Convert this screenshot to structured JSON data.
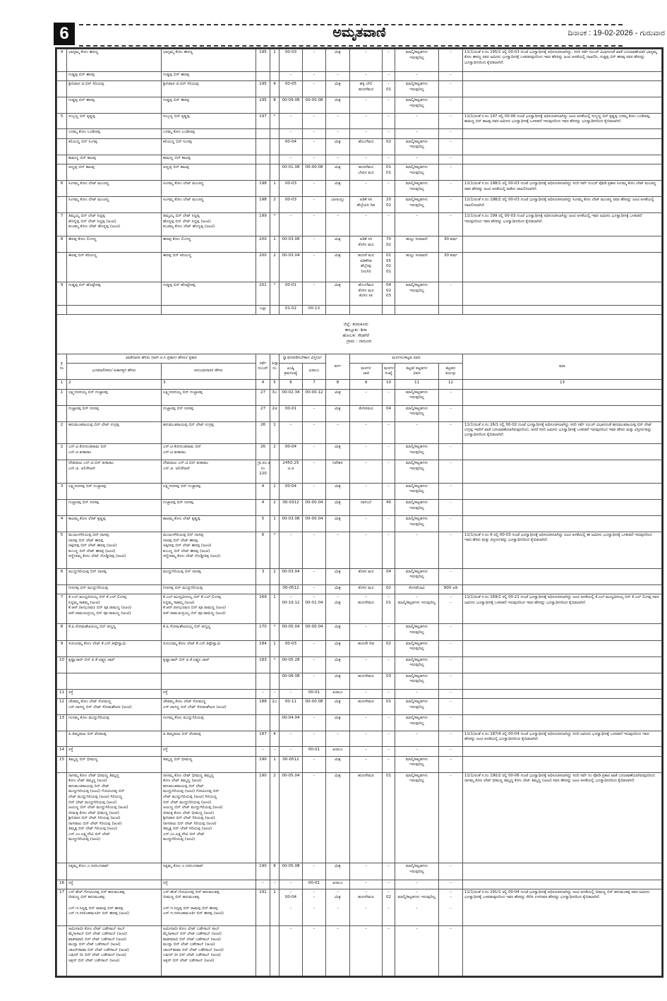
{
  "masthead": {
    "page_number": "6",
    "paper_name": "ಅಮೃತವಾಣಿ",
    "date_line": "ದಿನಾಂಕ : 19-02-2026 - ಗುರುವಾರ"
  },
  "section1": {
    "rows": [
      [
        "4",
        "ಭಾಗ್ಯಮ್ಮ ಕೋಂ ಈರಣ್ಣ",
        "ಭಾಗ್ಯಮ್ಮ ಕೋಂ ಈರಣ್ಣ",
        "195",
        "1",
        "00-03",
        "–",
        "ಮಿಶ್ರ",
        "–",
        "–",
        "ಮಾಲ್ಕಿ/ಕಟ್ಟಡಗಳು\nಇರುವುದಿಲ್ಲ",
        "–",
        "11(1)ರಂತೆ ಸ.ನಂ 195/1 ರಲ್ಲಿ 00-03 ಗುಂಟೆ ಭೂಸ್ವಾಧೀನಕ್ಕೆ ಅಧಿಸೂಚಿಸಲಾಗಿದ್ದು, ಸದರಿ ಸರ್ವೆ ನಂಬರ್ ವಿಭಾಗದಂತೆ ಖಾತೆ ಬದಲಾವಣೆಯಾಗಿ ಭಾಗ್ಯಮ್ಮ ಕೋಂ ಈರಣ್ಣ ರವರ ಜಮೀನು ಭೂಸ್ವಾಧೀನಕ್ಕೆ ಒಳಪಡುವುದರಿಂದ ಇವರ ಹೆಸರನ್ನು ಜಂಟಿ ಅಳತೆಯಲ್ಲಿ ದಾಖಲಿಸಿ, ಗುಡ್ಡಪ್ಪ ಬಿನ್ ಈರಪ್ಪ ರವರ ಹೆಸರನ್ನು ಭೂಸ್ವಾಧೀನದಿಂದ ಕೈಬಿಡಲಾಗಿದೆ."
      ],
      [
        "",
        "ಗುಡ್ಡಪ್ಪ ಬಿನ್ ಈರಪ್ಪ",
        "ಗುಡ್ಡಪ್ಪ ಬಿನ್ ಈರಪ್ಪ",
        "",
        "",
        "–",
        "–",
        "–",
        "–",
        "–",
        "–",
        "–",
        ""
      ],
      [
        "",
        "ಶ್ರೀನಿವಾಸ ಜಿ.ಬಿನ್ ಗಿರಿಯಪ್ಪ",
        "ಶ್ರೀನಿವಾಸ ಜಿ.ಬಿನ್ ಗಿರಿಯಪ್ಪ",
        "195",
        "4",
        "00-05",
        "–",
        "ಮಿಶ್ರ",
        "ಹಕ್ಕಿ ಬೇಲಿ\nಹುಣಸೆಮರ",
        "–\n01",
        "ಮಾಲ್ಕಿ/ಕಟ್ಟಡಗಳು\nಇರುವುದಿಲ್ಲ",
        "–",
        ""
      ],
      [
        "",
        "ಗುಡ್ಡಪ್ಪ ಬಿನ್ ಈರಪ್ಪ",
        "ಗುಡ್ಡಪ್ಪ ಬಿನ್ ಈರಪ್ಪ",
        "195",
        "8",
        "00-09.08",
        "00-00.08",
        "ಮಿಶ್ರ",
        "–",
        "–",
        "ಮಾಲ್ಕಿ/ಕಟ್ಟಡಗಳು\nಇರುವುದಿಲ್ಲ",
        "–",
        ""
      ],
      [
        "5",
        "ಸುಬ್ಬಣ್ಣ ಬಿನ್ ಕೃಷ್ಣಪ್ಪ",
        "ಸುಬ್ಬಣ್ಣ ಬಿನ್ ಕೃಷ್ಣಪ್ಪ",
        "197",
        "*",
        "–",
        "–",
        "–",
        "–",
        "–",
        "–",
        "–",
        "11(1)ರಂತೆ ಸ.ನಂ 197 ರಲ್ಲಿ 00-06 ಗುಂಟೆ ಭೂಸ್ವಾಧೀನಕ್ಕೆ ಅಧಿಸೂಚಿಸಲಾಗಿದ್ದು ಜಂಟಿ ಅಳತೆಯಲ್ಲಿ ಸುಬ್ಬಣ್ಣ ಬಿನ್ ಕೃಷ್ಣಪ್ಪ ಬಸಮ್ಮ ಕೋಂ ಬಂಡೀರಪ್ಪ, ಕಾಮಣ್ಣ ಬಿನ್ ಕಾಟಪ್ಪ ರವರ ಜಮೀನು ಭೂಸ್ವಾಧೀನಕ್ಕೆ ಒಳಪಡದೆ ಇರುವುದರಿಂದ ಇವರ ಹೆಸರನ್ನು ಭೂಸ್ವಾಧೀನದಿಂದ ಕೈಬಿಡಲಾಗಿದೆ."
      ],
      [
        "",
        "ಬಸಮ್ಮ ಕೋಂ ಬಂಡೀರಪ್ಪ",
        "ಬಸಮ್ಮ ಕೋಂ ಬಂಡೀರಪ್ಪ",
        "",
        "",
        "–",
        "–",
        "–",
        "–",
        "–",
        "–",
        "–",
        ""
      ],
      [
        "",
        "ಕರಿಯಣ್ಣ ಬಿನ್ ಸಿಂಗಪ್ಪ",
        "ಕರಿಯಣ್ಣ ಬಿನ್ ಸಿಂಗಪ್ಪ",
        "",
        "",
        "00-04",
        "–",
        "ಮಿಶ್ರ",
        "ಹೊಂಗೆಮರ",
        "02",
        "ಮಾಲ್ಕಿ/ಕಟ್ಟಡಗಳು\nಇರುವುದಿಲ್ಲ",
        "–",
        ""
      ],
      [
        "",
        "ಕಾಮಣ್ಣ ಬಿನ್ ಕಾಟಪ್ಪ",
        "ಕಾಮಣ್ಣ ಬಿನ್ ಕಾಟಪ್ಪ",
        "",
        "",
        "–",
        "–",
        "–",
        "–",
        "–",
        "–",
        "–",
        ""
      ],
      [
        "",
        "ಅಣ್ಣಪ್ಪ ಬಿನ್ ಕಾಟಪ್ಪ",
        "ಅಣ್ಣಪ್ಪ ಬಿನ್ ಕಾಟಪ್ಪ",
        "",
        "",
        "00-01.08",
        "00-00.08",
        "ಮಿಶ್ರ",
        "ಹುಣಸೆಮರ\nಬೇವಿನ ಮರ",
        "01\n01",
        "ಮಾಲ್ಕಿ/ಕಟ್ಟಡಗಳು\nಇರುವುದಿಲ್ಲ",
        "–",
        ""
      ],
      [
        "6",
        "ಸಿಂಗಮ್ಮ ಕೋಂ ಲೇಟ್ ಮಂಚಣ್ಣ",
        "ಸಿಂಗಮ್ಮ ಕೋಂ ಲೇಟ್ ಮಂಚಣ್ಣ",
        "198",
        "1",
        "00-03",
        "–",
        "ಮಿಶ್ರ",
        "–",
        "–",
        "ಮಾಲ್ಕಿ/ಕಟ್ಟಡಗಳು\nಇರುವುದಿಲ್ಲ",
        "–",
        "11(1)ರಂತೆ ಸ.ನಂ 198/1 ರಲ್ಲಿ 00-03 ಗುಂಟೆ ಭೂಸ್ವಾಧೀನಕ್ಕೆ ಅಧಿಸೂಚಿಸಲಾಗಿದ್ದು ಸದರಿ ಸರ್ವೆ ನಂಬರ್ ಪೋಡಿ ಪ್ರಕಾರ ಸಿಂಗಮ್ಮ ಕೋಂ ಲೇಟ್ ಮಂಚಣ್ಣ ರವರ ಹೆಸರನ್ನು ಜಂಟಿ ಅಳತೆಯಲ್ಲಿ ಪಡೆದು ದಾಖಲಿಸಲಾಗಿದೆ."
      ],
      [
        "",
        "ಸಿಂಗಮ್ಮ ಕೋಂ ಲೇಟ್ ಮಂಚಣ್ಣ",
        "ಸಿಂಗಮ್ಮ ಕೋಂ ಲೇಟ್ ಮಂಚಣ್ಣ",
        "198",
        "2",
        "00-03",
        "–",
        "ಬಾಗಾಯ್ತು",
        "ಅಡಿಕೆ ಸಸಿ\nಹೆಬ್ಬೇವಿನ ಗಿಡ",
        "20\n02",
        "ಮಾಲ್ಕಿ/ಕಟ್ಟಡಗಳು\nಇರುವುದಿಲ್ಲ",
        "–",
        "11(1)ರಂತೆ ಸ.ನಂ 198/2 ರಲ್ಲಿ 00-03 ಗುಂಟೆ ಭೂಸ್ವಾಧೀನಕ್ಕೆ ಅಧಿಸೂಚಿಸಲಾಗಿದ್ದು ಸಿಂಗಮ್ಮ ಕೋಂ ಲೇಟ್ ಮಂಚಣ್ಣ ರವರ ಹೆಸರನ್ನು ಜಂಟಿ ಅಳತೆಯಲ್ಲಿ ದಾಖಲಿಸಲಾಗಿದೆ."
      ],
      [
        "7",
        "ತಿಮ್ಮಯ್ಯ ಬಿನ್ ಲೇಟ್ ಸಿದ್ದಪ್ಪ\nಹೊನ್ನಪ್ಪ ಬಿನ್ ಲೇಟ್ ಸಿದ್ದಪ್ಪ (ಜಂಟಿ)\nಕಂಚಮ್ಮ ಕೋಂ ಲೇಟ್ ಹೊನ್ನಪ್ಪ (ಜಂಟಿ)",
        "ತಿಮ್ಮಯ್ಯ ಬಿನ್ ಲೇಟ್ ಸಿದ್ದಪ್ಪ\nಹೊನ್ನಪ್ಪ ಬಿನ್ ಲೇಟ್ ಸಿದ್ದಪ್ಪ (ಜಂಟಿ)\nಕಂಚಮ್ಮ ಕೋಂ ಲೇಟ್ ಹೊನ್ನಪ್ಪ (ಜಂಟಿ)",
        "199",
        "*",
        "–",
        "–",
        "–",
        "–",
        "–",
        "–",
        "–",
        "11(1)ರಂತೆ ಸ.ನಂ 199 ರಲ್ಲಿ 00-03 ಗುಂಟೆ ಭೂಸ್ವಾಧೀನಕ್ಕೆ ಅಧಿಸೂಚಿಸಲಾಗಿದ್ದು ಜಂಟಿ ಅಳತೆಯಲ್ಲಿ ಇವರ ಜಮೀನು ಭೂಸ್ವಾಧೀನಕ್ಕೆ ಒಳಪಡದೆ ಇರುವುದರಿಂದ ಇವರ ಹೆಸರನ್ನು ಭೂಸ್ವಾಧೀನದಿಂದ ಕೈಬಿಡಲಾಗಿದೆ."
      ],
      [
        "8",
        "ಈರಪ್ಪ ಕೋಂ ಲಿಂಗಣ್ಣ",
        "ಈರಪ್ಪ ಕೋಂ ಲಿಂಗಣ್ಣ",
        "200",
        "1",
        "00-03.08",
        "–",
        "ಮಿಶ್ರ",
        "ಅಡಿಕೆ ಸಸಿ\nತೆಂಗಿನ ಮರ",
        "70\n02",
        "ಹುಲ್ಲು ಸೀರಾವಣಿ",
        "30 ವರ್ಷ",
        ""
      ],
      [
        "",
        "ಈರಪ್ಪ ಬಿನ್ ಕರಿಯಣ್ಣ",
        "ಈರಪ್ಪ ಬಿನ್ ಕರಿಯಣ್ಣ",
        "200",
        "2",
        "00-03.04",
        "–",
        "ಮಿಶ್ರ",
        "ಹುಣಸೆ ಮರ\nಅಡಿಕೆಗಿಡ\nಹೆಬ್ಬೇವು\nನೀಲಗಿರಿ",
        "01\n55\n02\n01",
        "ಹುಲ್ಲು ಸೀರಾವಣಿ",
        "30 ವರ್ಷ",
        ""
      ],
      [
        "9",
        "ಗುಡ್ಡಪ್ಪ ಬಿನ್ ಹೊಟ್ಟೇರಪ್ಪ",
        "ಗುಡ್ಡಪ್ಪ ಬಿನ್ ಹೊಟ್ಟೇರಪ್ಪ",
        "201",
        "*",
        "00-01",
        "–",
        "ಮಿಶ್ರ",
        "ಹೊಂಗೆಮರ\nತೆಂಗಿನ ಮರ\nತೆಂಗಿನ ಸಸಿ",
        "04\n02\n03",
        "ಮಾಲ್ಕಿ/ಕಟ್ಟಡಗಳು\nಇರುವುದಿಲ್ಲ",
        "–",
        ""
      ]
    ],
    "total": {
      "label": "ಒಟ್ಟು",
      "area": "01-02",
      "kharab": "00-13"
    }
  },
  "location": {
    "district": "ಜಿಲ್ಲೆ: ತುಮಕೂರು",
    "taluk": "ತಾಲ್ಲೂಕು: ಶಿರಾ",
    "hobli": "ಹೋಬಳಿ: ಗೌಡಗೆರೆ",
    "village": "ಗ್ರಾಮ : ನಾದೂರು"
  },
  "headers": {
    "sl_no": "ಕ್ರ\nಸಂ",
    "owner_group": "ಖಾತೆದಾರರ ಹೆಸರು (ಆರ್.ಟಿ.ಸಿ ಪ್ರಕಾರ) ಹೆಸರು/ ಪ್ರಕಾರ",
    "owner": "ಭೂಮಾಲೀಕರು/ ಹಿತಾಸಕ್ತರ ಹೆಸರು",
    "occupant": "ಅನುಭವದಾರರ ಹೆಸರು",
    "survey_no": "ಸರ್ವೆ\nನಂಬರ್",
    "hissa": "ಹಿಸ್ಸಾ\nನಂ",
    "area_group": "ಸ್ವಾಧೀನಪಡಿಸಬೇಕಾದ ವಿಸ್ತೀರ್ಣ",
    "area_khushki": "ಖುಷ್ಕಿ\nಕ್ರಮಸಂಖ್ಯೆ",
    "area_kharab": "ಖರಾಬು",
    "category": "ವರ್ಗ",
    "trees_group": "ಮರಗಳು/ಕಟ್ಟಡ ವಿವರ",
    "tree_type": "ಮರಗಳ\nಜಾತಿ",
    "tree_count": "ಮರಗಳ\nಸಂಖ್ಯೆ",
    "building": "ಕಟ್ಟಡ/ ಕಟ್ಟಡಗಳ\nವಿವರ",
    "building_age": "ಕಟ್ಟಡದ\nವಯಸ್ಸು",
    "remarks": "ಷರಾ",
    "numbers": [
      "1",
      "2",
      "3",
      "4",
      "5",
      "6",
      "7",
      "8",
      "9",
      "10",
      "11",
      "12",
      "13"
    ]
  },
  "section2": {
    "rows": [
      [
        "1",
        "ಲಕ್ಷ್ಮೀನರಸಯ್ಯ ಬಿನ್ ಗುಜ್ಜಾರಪ್ಪ",
        "ಲಕ್ಷ್ಮೀನರಸಯ್ಯ ಬಿನ್ ಗುಜ್ಜಾರಪ್ಪ",
        "27",
        "3ಎ",
        "00-02.34",
        "00-00.12",
        "ಮಿಶ್ರ",
        "–",
        "–",
        "ಮಾಲ್ಕಿ/ಕಟ್ಟಡಗಳು\nಇರುವುದಿಲ್ಲ",
        "–",
        ""
      ],
      [
        "",
        "ಗುಜ್ಜಾರಪ್ಪ ಬಿನ್ ನರಸಪ್ಪ",
        "ಗುಜ್ಜಾರಪ್ಪ ಬಿನ್ ನರಸಪ್ಪ",
        "27",
        "2ಜಿ",
        "00-01",
        "–",
        "ಮಿಶ್ರ",
        "ತೆಂಗಿನಮರ",
        "04",
        "ಮಾಲ್ಕಿ/ಕಟ್ಟಡಗಳು\nಇರುವುದಿಲ್ಲ",
        "–",
        ""
      ],
      [
        "2",
        "ಹನುಮಂತರಾಯಪ್ಪ ಬಿನ್ ಲೇಟ್ ಉಗ್ರಪ್ಪ",
        "ಹನುಮಂತರಾಯಪ್ಪ ಬಿನ್ ಲೇಟ್ ಉಗ್ರಪ್ಪ",
        "26",
        "1",
        "–",
        "–",
        "–",
        "–",
        "–",
        "–",
        "–",
        "11(1)ರಂತೆ ಸ.ನಂ 26/1 ರಲ್ಲಿ 00-02 ಗುಂಟೆ ಭೂಸ್ವಾಧೀನಕ್ಕೆ ಅಧಿಸೂಚಿಸಲಾಗಿದ್ದು ಸದರಿ ಸರ್ವೆ ನಂಬರ್ ವಿಭಾಗದಂತೆ ಹನುಮಂತರಾಯಪ್ಪ ಬಿನ್ ಲೇಟ್ ಉಗ್ರಪ್ಪ ಇವರಿಗೆ ಖಾತೆ ಬದಲಾವಣೆಯಾಗಿರುವುದರಿಂದ, ಆದರೆ ಸದರಿ ಜಮೀನು ಭೂಸ್ವಾಧೀನಕ್ಕೆ ಒಳಪಡದೆ ಇರುವುದರಿಂದ ಇವರ ಹೆಸರು ಮತ್ತು ವಿಸ್ತೀರ್ಣವನ್ನು ಭೂಸ್ವಾಧೀನದಿಂದ ಕೈಬಿಡಲಾಗಿದೆ."
      ],
      [
        "2",
        "ಎನ್.ಟಿ.ಕೋದಂಡರಾಮ ಬಿನ್\nಎನ್.ಟಿ.ತುಕಾರಾಂ",
        "ಎನ್.ಟಿ.ಕೋದಂಡರಾಮ ಬಿನ್\nಎನ್.ಟಿ.ತುಕಾರಾಂ",
        "26",
        "2",
        "00-04",
        "–",
        "ಮಿಶ್ರ",
        "–",
        "–",
        "ಮಾಲ್ಕಿ/ಕಟ್ಟಡಗಳು\nಇರುವುದಿಲ್ಲ",
        "–",
        ""
      ],
      [
        "",
        "ದೇವರಾಜು ಎನ್.ಟಿ.ಬಿನ್ ತುಕಾರಾಂ\nಎನ್.ಜಿ. ಅಲಿಸೇಜರ್",
        "ದೇವರಾಜು ಎನ್.ಟಿ.ಬಿನ್ ತುಕಾರಾಂ\nಎನ್.ಜಿ. ಅಲಿಸೇಜರ್",
        "ಗ್ರಾ.ಪಂ.ಖಾತೆ\nನಂ 220",
        "",
        "2450.25\nಚ.ಅ",
        "–",
        "ನಿವೇಶನ",
        "–",
        "–",
        "ಮಾಲ್ಕಿ/ಕಟ್ಟಡಗಳು\nಇರುವುದಿಲ್ಲ",
        "–",
        ""
      ],
      [
        "3",
        "ಲಕ್ಷ್ಮೀನರಸಪ್ಪ ಬಿನ್ ಗುಜ್ಜಾರಪ್ಪ",
        "ಲಕ್ಷ್ಮೀನರಸಪ್ಪ ಬಿನ್ ಗುಜ್ಜಾರಪ್ಪ",
        "4",
        "1",
        "00-04",
        "–",
        "ಮಿಶ್ರ",
        "–",
        "–",
        "ಮಾಲ್ಕಿ/ಕಟ್ಟಡಗಳು\nಇರುವುದಿಲ್ಲ",
        "–",
        ""
      ],
      [
        "",
        "ಗುಜ್ಜಾರಪ್ಪ ಬಿನ್ ನರಸಪ್ಪ",
        "ಗುಜ್ಜಾರಪ್ಪ ಬಿನ್ ನರಸಪ್ಪ",
        "4",
        "2",
        "00-0312",
        "00-00.04",
        "ಮಿಶ್ರ",
        "ದಾಳಿಂಬೆ",
        "40",
        "ಮಾಲ್ಕಿ/ಕಟ್ಟಡಗಳು\nಇರುವುದಿಲ್ಲ",
        "–",
        ""
      ],
      [
        "4",
        "ಕಾಟಮ್ಮ ಕೋಂ ಲೇಟ್ ಕೃಷ್ಣಪ್ಪ",
        "ಕಾಟಮ್ಮ ಕೋಂ ಲೇಟ್ ಕೃಷ್ಣಪ್ಪ",
        "5",
        "1",
        "00-03.08",
        "00-00.04",
        "ಮಿಶ್ರ",
        "–",
        "–",
        "ಮಾಲ್ಕಿ/ಕಟ್ಟಡಗಳು\nಇರುವುದಿಲ್ಲ",
        "–",
        ""
      ],
      [
        "5",
        "ಮಂಜುಳಗಿರಿಯಪ್ಪ ಬಿನ್ ದಾಸಪ್ಪ\nದಾಸಪ್ಪ ಬಿನ್ ಲೇಟ್ ಈರಪ್ಪ\nಚಿಕ್ಕೀರಪ್ಪ ಬಿನ್ ಲೇಟ್ ಈರಪ್ಪ (ಜಂಟಿ)\nಕಂಬಣ್ಣ ಬಿನ್ ಲೇಟ್ ಈರಪ್ಪ (ಜಂಟಿ)\nಸಣ್ಣೀರಮ್ಮ ಕೋಂ ಲೇಟ್ ದೊಡ್ಡೀರಪ್ಪ (ಜಂಟಿ)",
        "ಮಂಜುಳಗಿರಿಯಪ್ಪ ಬಿನ್ ದಾಸಪ್ಪ\nದಾಸಪ್ಪ ಬಿನ್ ಲೇಟ್ ಈರಪ್ಪ\nಚಿಕ್ಕೀರಪ್ಪ ಬಿನ್ ಲೇಟ್ ಈರಪ್ಪ (ಜಂಟಿ)\nಕಂಬಣ್ಣ ಬಿನ್ ಲೇಟ್ ಈರಪ್ಪ (ಜಂಟಿ)\nಸಣ್ಣೀರಮ್ಮ ಕೋಂ ಲೇಟ್ ದೊಡ್ಡೀರಪ್ಪ (ಜಂಟಿ)",
        "6",
        "*",
        "–",
        "–",
        "–",
        "–",
        "–",
        "–",
        "–",
        "11(1)ರಂತೆ ಸ.ನಂ 6 ರಲ್ಲಿ 00-03 ಗುಂಟೆ ಭೂಸ್ವಾಧೀನಕ್ಕೆ ಅಧಿಸೂಚಿಸಲಾಗಿದ್ದು ಜಂಟಿ ಅಳತೆಯಲ್ಲಿ ಈ ಜಮೀನು ಭೂಸ್ವಾಧೀನಕ್ಕೆ ಒಳಪಡದೆ ಇರುವುದರಿಂದ ಇವರ ಹೆಸರು ಮತ್ತು ವಿಸ್ತೀರ್ಣವನ್ನು ಭೂಸ್ವಾಧೀನದಿಂದ ಕೈಬಿಡಲಾಗಿದೆ."
      ],
      [
        "6",
        "ಮುದ್ದುಗಿರಿಯಪ್ಪ ಬಿನ್ ದಾಸಪ್ಪ",
        "ಮುದ್ದುಗಿರಿಯಪ್ಪ ಬಿನ್ ದಾಸಪ್ಪ",
        "3",
        "2",
        "00-03.04",
        "–",
        "ಮಿಶ್ರ",
        "ತೆಂಗಿನ ಮರ",
        "04",
        "ಮಾಲ್ಕಿ/ಕಟ್ಟಡಗಳು\nಇರುವುದಿಲ್ಲ",
        "–",
        ""
      ],
      [
        "",
        "ನೀರಳಪ್ಪ ಬಿನ್ ಮುದ್ದುಗಿರಿಯಪ್ಪ",
        "ನೀರಳಪ್ಪ ಬಿನ್ ಮುದ್ದುಗಿರಿಯಪ್ಪ",
        "",
        "",
        "00-0512",
        "–",
        "ಮಿಶ್ರ",
        "ತೆಂಗಿನ ಮರ",
        "02",
        "ಕೊಳವೆಬಾವಿ",
        "900 ಅಡಿ",
        ""
      ],
      [
        "7",
        "ಕೆ.ಎಲ್.ಮುದ್ದವೀರಯ್ಯ ಬಿನ್ ಕೆ.ಎಲ್.ಲಿಂಗಪ್ಪ\nಸಿದ್ದಮ್ಮ ಸಾಕಮ್ಮ (ಜಂಟಿ)\nಕೆ.ಆರ್.ನಾಗಭೂಷಣ ಬಿನ್ ಪೂ.ರಾಮಣ್ಣ (ಜಂಟಿ)\nಆರ್.ರಾಮಚಂದ್ರಯ್ಯ ಬಿನ್ ಪೂ.ರಾಮಣ್ಣ (ಜಂಟಿ)",
        "ಕೆ.ಎಲ್.ಮುದ್ದವೀರಯ್ಯ ಬಿನ್ ಕೆ.ಎಲ್.ಲಿಂಗಪ್ಪ\nಸಿದ್ದಮ್ಮ ಸಾಕಮ್ಮ (ಜಂಟಿ)\nಕೆ.ಆರ್.ನಾಗಭೂಷಣ ಬಿನ್ ಪೂ.ರಾಮಣ್ಣ (ಜಂಟಿ)\nಆರ್.ರಾಮಚಂದ್ರಯ್ಯ ಬಿನ್ ಪೂ.ರಾಮಣ್ಣ (ಜಂಟಿ)",
        "169",
        "1",
        "–\n00-19.12",
        "–\n00-01.04",
        "–\nಮಿಶ್ರ",
        "–\nಹುಣಸೇಮರ",
        "–\n01",
        "–\nಮಾಲ್ಕಿ/ಕಟ್ಟಡಗಳು ಇರುವುದಿಲ್ಲ",
        "–\n–",
        "11(1)ರಂತೆ ಸ.ನಂ 169/1 ರಲ್ಲಿ 00-21 ಗುಂಟೆ ಭೂಸ್ವಾಧೀನಕ್ಕೆ ಅಧಿಸೂಚಿಸಲಾಗಿದ್ದು ಜಂಟಿ ಅಳತೆಯಲ್ಲಿ ಕೆ.ಎಲ್.ಮುದ್ದವೀರಯ್ಯ ಬಿನ್ ಕೆ.ಎಲ್ ಲಿಂಗಪ್ಪ ರವರ ಜಮೀನು ಭೂಸ್ವಾಧೀನಕ್ಕೆ ಒಳಪಡದೆ ಇರುವುದರಿಂದ ಇವರ ಹೆಸರನ್ನು ಭೂಸ್ವಾಧೀನದಿಂದ ಕೈಬಿಡಲಾಗಿದೆ."
      ],
      [
        "8",
        "ಕೆ.ಪಿ.ಸೋಮಶೇಖರಯ್ಯ ಬಿನ್ ಪದ್ಮಣ್ಣ",
        "ಕೆ.ಪಿ.ಸೋಮಶೇಖರಯ್ಯ ಬಿನ್ ಪದ್ಮಣ್ಣ",
        "170",
        "*",
        "00-05.04",
        "00-00.04",
        "ಮಿಶ್ರ",
        "–",
        "–",
        "ಮಾಲ್ಕಿ/ಕಟ್ಟಡಗಳು\nಇರುವುದಿಲ್ಲ",
        "–",
        ""
      ],
      [
        "9",
        "ಸುನಂದಮ್ಮ ಕೋಂ ಲೇಟ್ ಕೆ.ಎನ್.ತಿಪ್ಪೇಸ್ವಾಮಿ",
        "ಸುನಂದಮ್ಮ ಕೋಂ ಲೇಟ್ ಕೆ.ಎನ್.ತಿಪ್ಪೇಸ್ವಾಮಿ",
        "184",
        "1",
        "00-03",
        "–",
        "ಮಿಶ್ರ",
        "ಹುಣಸೇ ಗಿಡ",
        "02",
        "ಮಾಲ್ಕಿ/ಕಟ್ಟಡಗಳು\nಇರುವುದಿಲ್ಲ",
        "–",
        ""
      ],
      [
        "10",
        "ಕೃಷ್ಣಾಚಾರ್ ಬಿನ್ ಪಿ.ಕೆ.ಲಕ್ಷ್ಮಣ ಚಾರ್",
        "ಕೃಷ್ಣಾಚಾರ್ ಬಿನ್ ಪಿ.ಕೆ.ಲಕ್ಷ್ಮಣ ಚಾರ್",
        "183",
        "*",
        "00-05.28",
        "–",
        "ಮಿಶ್ರ",
        "–",
        "–",
        "ಮಾಲ್ಕಿ/ಕಟ್ಟಡಗಳು\nಇರುವುದಿಲ್ಲ",
        "–",
        ""
      ],
      [
        "",
        "",
        "",
        "",
        "",
        "00-08.08",
        "–",
        "ಮಿಶ್ರ",
        "ಹುಣಸೇಮರ",
        "03",
        "ಮಾಲ್ಕಿ/ಕಟ್ಟಡಗಳು\nಇರುವುದಿಲ್ಲ",
        "–",
        ""
      ],
      [
        "11",
        "ರಸ್ತೆ",
        "ರಸ್ತೆ",
        "–",
        "–",
        "–",
        "00-01",
        "ಖರಾಬು",
        "–",
        "–",
        "–",
        "–",
        ""
      ],
      [
        "12",
        "ಚೌಡಮ್ಮ ಕೋಂ ಲೇಟ್ ಸೋಮಣ್ಣ\nಎಸ್.ನಾಗಣ್ಣ ಬಿನ್ ಲೇಟ್ ಸೋಮಶೇಖರ (ಜಂಟಿ)",
        "ಚೌಡಮ್ಮ ಕೋಂ ಲೇಟ್ ಸೋಮಣ್ಣ\nಎಸ್.ನಾಗಣ್ಣ ಬಿನ್ ಲೇಟ್ ಸೋಮಶೇಖರ (ಜಂಟಿ)",
        "188",
        "2ಎ",
        "00-11",
        "00-00.08",
        "ಮಿಶ್ರ",
        "ಹುಣಸೇಮರ",
        "01",
        "ಮಾಲ್ಕಿ/ಕಟ್ಟಡಗಳು\nಇರುವುದಿಲ್ಲ",
        "–",
        ""
      ],
      [
        "13",
        "ಗಂಗಮ್ಮ ಕೋಂ ಮುದ್ದುಗಿರಿಯಪ್ಪ",
        "ಗಂಗಮ್ಮ ಕೋಂ ಮುದ್ದುಗಿರಿಯಪ್ಪ",
        "",
        "",
        "00-04.04",
        "–",
        "ಮಿಶ್ರ",
        "–",
        "–",
        "ಮಾಲ್ಕಿ/ಕಟ್ಟಡಗಳು\nಇರುವುದಿಲ್ಲ",
        "–",
        ""
      ],
      [
        "",
        "ಪಿ.ತಿಮ್ಮರಾಜು ಬಿನ್ ವೆಂಕಟಪ್ಪ",
        "ಪಿ.ತಿಮ್ಮರಾಜು ಬಿನ್ ವೆಂಕಟಪ್ಪ",
        "187",
        "4",
        "–",
        "–",
        "–",
        "–",
        "–",
        "–",
        "–",
        "11(1)ರಂತೆ ಸ.ನಂ 187/4 ರಲ್ಲಿ 00-04 ಗುಂಟೆ ಭೂಸ್ವಾಧೀನಕ್ಕೆ ಅಧಿಸೂಚಿಸಲಾಗಿದ್ದು ಸದರಿ ಜಮೀನು ಭೂಸ್ವಾಧೀನಕ್ಕೆ ಒಳಪಡದೆ ಇರುವುದರಿಂದ ಇವರ ಹೆಸರನ್ನು ಜಂಟಿ ಅಳತೆಯಲ್ಲಿ ಭೂಸ್ವಾಧೀನದಿಂದ ಕೈಬಿಡಲಾಗಿದೆ."
      ],
      [
        "14",
        "ರಸ್ತೆ",
        "ರಸ್ತೆ",
        "–",
        "–",
        "–",
        "00-01",
        "ಖರಾಬು",
        "–",
        "–",
        "–",
        "–",
        ""
      ],
      [
        "15",
        "ತಿಮ್ಮಣ್ಣ ಬಿನ್ ಭೀಮಣ್ಣ",
        "ತಿಮ್ಮಣ್ಣ ಬಿನ್ ಭೀಮಣ್ಣ",
        "190",
        "1",
        "00-0512",
        "–",
        "ಮಿಶ್ರ",
        "–",
        "–",
        "ಮಾಲ್ಕಿ/ಕಟ್ಟಡಗಳು\nಇರುವುದಿಲ್ಲ",
        "–",
        ""
      ],
      [
        "",
        "ನಾಗಮ್ಮ ಕೋಂ ಲೇಟ್ ಭೀಮಣ್ಣ ತಿಮ್ಮಣ್ಣ\nಕೋಂ ಲೇಟ್ ತಿಮ್ಮಣ್ಣ (ಜಂಟಿ)\nಹನುಮಂತರಾಯಪ್ಪ ಬಿನ್ ಲೇಟ್\nಮುದ್ದುಗಿರಿಯಪ್ಪ (ಜಂಟಿ) ಗೋವಿಂದಪ್ಪ ಬಿನ್\nಲೇಟ್ ಮುದ್ದುಗಿರಿಯಪ್ಪ (ಜಂಟಿ) ಗಿರಿಯಣ್ಣ\nಬಿನ್ ಲೇಟ್ ಮುದ್ದುಗಿರಿಯಪ್ಪ (ಜಂಟಿ)\nಜಯಣ್ಣ ಬಿನ್ ಲೇಟ್ ಮುದ್ದುಗಿರಿಯಪ್ಪ (ಜಂಟಿ)\nಬೀಮಕ್ಕ ಕೋಂ ಲೇಟ್ ಭೀಮಣ್ಣ (ಜಂಟಿ)\nಶ್ರೀನಿವಾಸ ಬಿನ್ ಲೇಟ್ ಗಿರಿಯಪ್ಪ (ಜಂಟಿ)\nನಾಗರಾಜು ಬಿನ್ ಲೇಟ್ ಗಿರಿಯಪ್ಪ (ಜಂಟಿ)\nತಿಮ್ಮಕ್ಕ ಬಿನ್ ಲೇಟ್ ಗಿರಿಯಪ್ಪ (ಜಂಟಿ)\nಎನ್.ಎಂ.ಲಕ್ಷ್ಮಿದೇವಿ ಬಿನ್ ಲೇಟ್\nಮುದ್ದುಗಿರಿಯಪ್ಪ (ಜಂಟಿ)",
        "ನಾಗಮ್ಮ ಕೋಂ ಲೇಟ್ ಭೀಮಣ್ಣ ತಿಮ್ಮಣ್ಣ\nಕೋಂ ಲೇಟ್ ತಿಮ್ಮಣ್ಣ (ಜಂಟಿ)\nಹನುಮಂತರಾಯಪ್ಪ ಬಿನ್ ಲೇಟ್\nಮುದ್ದುಗಿರಿಯಪ್ಪ (ಜಂಟಿ) ಗೋವಿಂದಪ್ಪ ಬಿನ್\nಲೇಟ್ ಮುದ್ದುಗಿರಿಯಪ್ಪ (ಜಂಟಿ) ಗಿರಿಯಣ್ಣ\nಬಿನ್ ಲೇಟ್ ಮುದ್ದುಗಿರಿಯಪ್ಪ (ಜಂಟಿ)\nಜಯಣ್ಣ ಬಿನ್ ಲೇಟ್ ಮುದ್ದುಗಿರಿಯಪ್ಪ (ಜಂಟಿ)\nಬೀಮಕ್ಕ ಕೋಂ ಲೇಟ್ ಭೀಮಣ್ಣ (ಜಂಟಿ)\nಶ್ರೀನಿವಾಸ ಬಿನ್ ಲೇಟ್ ಗಿರಿಯಪ್ಪ (ಜಂಟಿ)\nನಾಗರಾಜು ಬಿನ್ ಲೇಟ್ ಗಿರಿಯಪ್ಪ (ಜಂಟಿ)\nತಿಮ್ಮಕ್ಕ ಬಿನ್ ಲೇಟ್ ಗಿರಿಯಪ್ಪ (ಜಂಟಿ)\nಎನ್.ಎಂ.ಲಕ್ಷ್ಮಿದೇವಿ ಬಿನ್ ಲೇಟ್\nಮುದ್ದುಗಿರಿಯಪ್ಪ (ಜಂಟಿ)",
        "190",
        "2",
        "00-05.04",
        "–",
        "ಮಿಶ್ರ",
        "ಹುಣಸೇಮರ",
        "01",
        "ಮಾಲ್ಕಿ/ಕಟ್ಟಡಗಳು\nಇರುವುದಿಲ್ಲ",
        "–",
        "11(1)ರಂತೆ ಸ.ನಂ 190/2 ರಲ್ಲಿ 00-06 ಗುಂಟೆ ಭೂಸ್ವಾಧೀನಕ್ಕೆ ಅಧಿಸೂಚಿಸಲಾಗಿದ್ದು ಸದರಿ ಸರ್ವೆ ನಂ ಪೋಡಿ ಪ್ರಕಾರ ಖಾತೆ ಬದಲಾವಣೆಯಾಗಿರುವುದರಿಂದ ನಾಗಮ್ಮ ಕೋಂ ಲೇಟ್ ಭೀಮಣ್ಣ ತಿಮ್ಮಣ್ಣ ಕೋಂ ಲೇಟ್ ತಿಮ್ಮಣ್ಣ (ಜಂಟಿ) ರವರ ಹೆಸರನ್ನು ಜಂಟಿ ಅಳತೆಯಲ್ಲಿ ಭೂಸ್ವಾಧೀನದಿಂದ ಕೈಬಿಡಲಾಗಿದೆ."
      ],
      [
        "",
        "ರತ್ನಮ್ಮ ಕೋಂ ಎ.ನರಸಿಂಗರಾವ್",
        "ರತ್ನಮ್ಮ ಕೋಂ ಎ.ನರಸಿಂಗರಾವ್",
        "190",
        "8",
        "00-05.08",
        "–",
        "ಮಿಶ್ರ",
        "–",
        "–",
        "ಮಾಲ್ಕಿ/ಕಟ್ಟಡಗಳು\nಇರುವುದಿಲ್ಲ",
        "–",
        ""
      ],
      [
        "16",
        "ರಸ್ತೆ",
        "ರಸ್ತೆ",
        "–",
        "–",
        "–",
        "00-01",
        "ಖರಾಬು",
        "–",
        "–",
        "–",
        "–",
        ""
      ],
      [
        "17",
        "ಎನ್.ಹೆಚ್.ಗೋವಿಂದಪ್ಪ ಬಿನ್ ಹನುಮಂತಪ್ಪ\nಬೀಮಣ್ಣ ಬಿನ್ ಹನುಮಂತಪ್ಪ\n\nಎನ್.ಇ.ಸಿದ್ದಪ್ಪ ಬಿನ್ ರಾಮಪ್ಪ ಬಿನ್ ಈರಪ್ಪ\nಎನ್.ಇ.ನರಸಿಂಹಮೂರ್ತಿ ಬಿನ್ ಈರಪ್ಪ (ಜಂಟಿ)",
        "ಎನ್.ಹೆಚ್.ಗೋವಿಂದಪ್ಪ ಬಿನ್ ಹನುಮಂತಪ್ಪ\nಬೀಮಣ್ಣ ಬಿನ್ ಹನುಮಂತಪ್ಪ\n\nಎನ್.ಇ.ಸಿದ್ದಪ್ಪ ಬಿನ್ ರಾಮಪ್ಪ ಬಿನ್ ಈರಪ್ಪ\nಎನ್.ಇ.ನರಸಿಂಹಮೂರ್ತಿ ಬಿನ್ ಈರಪ್ಪ (ಜಂಟಿ)",
        "191",
        "1",
        "–\n00-04\n\n–",
        "–\n–\n\n–",
        "–\nಮಿಶ್ರ\n\n–",
        "–\nಹುಣಸೇಮರ\n\n–",
        "–\n02\n\n–",
        "–\nಮಾಲ್ಕಿ/ಕಟ್ಟಡಗಳು ಇರುವುದಿಲ್ಲ\n\n–",
        "–\n–\n\n–",
        "11(1)ರಂತೆ ಸ.ನಂ 191/1 ರಲ್ಲಿ 00-04 ಗುಂಟೆ ಭೂಸ್ವಾಧೀನಕ್ಕೆ ಅಧಿಸೂಚಿಸಲಾಗಿದ್ದು ಜಂಟಿ ಅಳತೆಯಲ್ಲಿ ಬೀಮಣ್ಣ ಬಿನ್ ಹನುಮಂತಪ್ಪ ರವರ ಜಮೀನು ಭೂಸ್ವಾಧೀನಕ್ಕೆ ಒಳಪಡುವುದರಿಂದ ಇವರ ಹೆಸರನ್ನು ಸೇರಿಸಿ ಉಳಿದವರ ಹೆಸರನ್ನು ಭೂಸ್ವಾಧೀನದಿಂದ ಕೈಬಿಡಲಾಗಿದೆ."
      ],
      [
        "",
        "ಅಮೀನಾಬೀ ಕೋಂ ಲೇಟ್ ಬಡೇಸಾಬ್ ಸಾಬ್\nಮೈನಾಸಾಬ್ ಬಿನ್ ಲೇಟ್ ಬಡೇಸಾಬ್ (ಜಂಟಿ)\nಫಾತೀಮಾಬಿ ಬಿನ್ ಲೇಟ್ ಬಡೇಸಾಬ್ (ಜಂಟಿ)\nಮುನ್ನಾ ಬಿನ್ ಲೇಟ್ ಬಡೇಸಾಬ್ (ಜಂಟಿ)\nಚಾಂದ್‌ಪಾಷಾ ಬಿನ್ ಲೇಟ್ ಬಡೇಸಾಬ್ (ಜಂಟಿ)\nಬಷೀರ್ ಬೀ ಬಿನ್ ಲೇಟ್ ಬಡೇಸಾಬ್ (ಜಂಟಿ)\nಅಕ್ಬರ್ ಬಿನ್ ಲೇಟ್ ಬಡೇಸಾಬ್ (ಜಂಟಿ)",
        "ಅಮೀನಾಬೀ ಕೋಂ ಲೇಟ್ ಬಡೇಸಾಬ್ ಸಾಬ್\nಮೈನಾಸಾಬ್ ಬಿನ್ ಲೇಟ್ ಬಡೇಸಾಬ್ (ಜಂಟಿ)\nಫಾತೀಮಾಬಿ ಬಿನ್ ಲೇಟ್ ಬಡೇಸಾಬ್ (ಜಂಟಿ)\nಮುನ್ನಾ ಬಿನ್ ಲೇಟ್ ಬಡೇಸಾಬ್ (ಜಂಟಿ)\nಚಾಂದ್‌ಪಾಷಾ ಬಿನ್ ಲೇಟ್ ಬಡೇಸಾಬ್ (ಜಂಟಿ)\nಬಷೀರ್ ಬೀ ಬಿನ್ ಲೇಟ್ ಬಡೇಸಾಬ್ (ಜಂಟಿ)\nಅಕ್ಬರ್ ಬಿನ್ ಲೇಟ್ ಬಡೇಸಾಬ್ (ಜಂಟಿ)",
        "",
        "",
        "–",
        "–",
        "–",
        "–",
        "–",
        "–",
        "–",
        ""
      ]
    ]
  }
}
